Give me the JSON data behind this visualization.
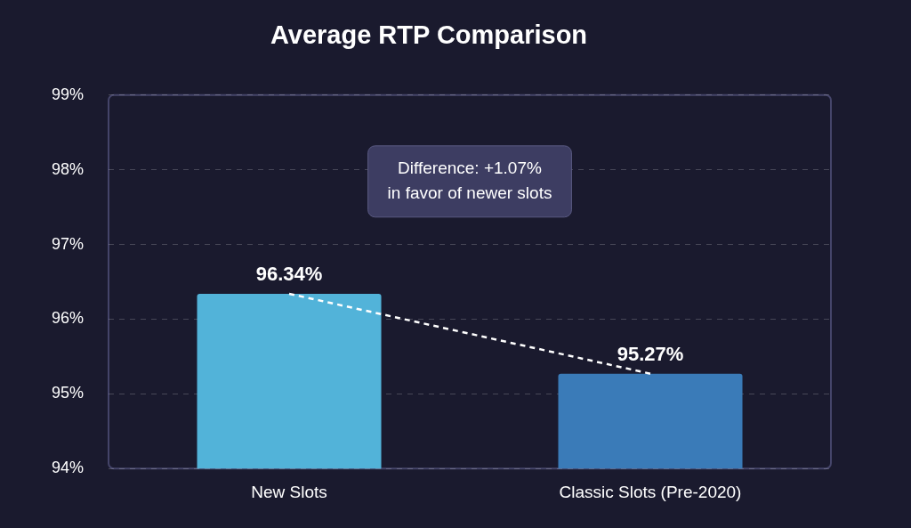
{
  "chart_data": {
    "type": "bar",
    "title": "Average RTP Comparison",
    "categories": [
      "New Slots",
      "Classic Slots (Pre-2020)"
    ],
    "series": [
      {
        "colors": [
          "#52b3d9",
          "#3a7bb8"
        ],
        "values": [
          96.34,
          95.27
        ],
        "value_labels": [
          "96.34%",
          "95.27%"
        ]
      },
      {
        "type": "line",
        "color": "#ffffff",
        "values": [
          96.34,
          95.27
        ],
        "line_style": "dashed",
        "marker": "none"
      }
    ],
    "ylim": [
      94,
      99
    ],
    "yticks": [
      {
        "value": 94,
        "label": "94%"
      },
      {
        "value": 95,
        "label": "95%"
      },
      {
        "value": 96,
        "label": "96%"
      },
      {
        "value": 97,
        "label": "97%"
      },
      {
        "value": 98,
        "label": "98%"
      },
      {
        "value": 99,
        "label": "99%"
      }
    ],
    "grid": "y",
    "legend": false,
    "annotations": [
      "Difference: +1.07%\nin favor of newer slots"
    ]
  }
}
